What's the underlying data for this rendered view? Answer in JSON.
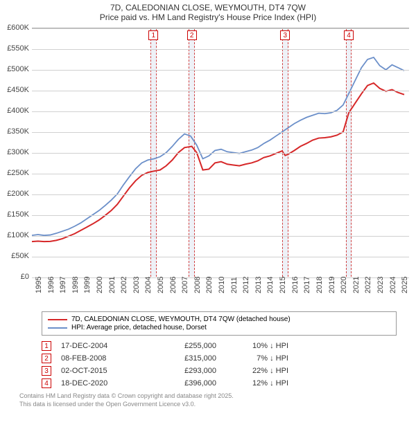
{
  "title": {
    "line1": "7D, CALEDONIAN CLOSE, WEYMOUTH, DT4 7QW",
    "line2": "Price paid vs. HM Land Registry's House Price Index (HPI)"
  },
  "chart": {
    "type": "line",
    "background_color": "#ffffff",
    "grid_color": "#d0d0d0",
    "xlim": [
      1995,
      2025.9
    ],
    "ylim": [
      0,
      600000
    ],
    "ytick_step": 50000,
    "y_ticks": [
      "£0",
      "£50K",
      "£100K",
      "£150K",
      "£200K",
      "£250K",
      "£300K",
      "£350K",
      "£400K",
      "£450K",
      "£500K",
      "£550K",
      "£600K"
    ],
    "x_ticks": [
      "1995",
      "1996",
      "1997",
      "1998",
      "1999",
      "2000",
      "2001",
      "2002",
      "2003",
      "2004",
      "2005",
      "2006",
      "2007",
      "2008",
      "2009",
      "2010",
      "2011",
      "2012",
      "2013",
      "2014",
      "2015",
      "2016",
      "2017",
      "2018",
      "2019",
      "2020",
      "2021",
      "2022",
      "2023",
      "2024",
      "2025"
    ],
    "x_tick_fontsize": 11,
    "y_tick_fontsize": 11,
    "series": [
      {
        "name": "red",
        "color": "#d62728",
        "width": 2,
        "points": [
          [
            1995.0,
            85000
          ],
          [
            1995.5,
            86000
          ],
          [
            1996.0,
            85000
          ],
          [
            1996.5,
            85500
          ],
          [
            1997.0,
            88000
          ],
          [
            1997.5,
            92000
          ],
          [
            1998.0,
            98000
          ],
          [
            1998.5,
            104000
          ],
          [
            1999.0,
            112000
          ],
          [
            1999.5,
            120000
          ],
          [
            2000.0,
            128000
          ],
          [
            2000.5,
            137000
          ],
          [
            2001.0,
            148000
          ],
          [
            2001.5,
            160000
          ],
          [
            2002.0,
            175000
          ],
          [
            2002.5,
            195000
          ],
          [
            2003.0,
            215000
          ],
          [
            2003.5,
            232000
          ],
          [
            2004.0,
            245000
          ],
          [
            2004.5,
            252000
          ],
          [
            2004.96,
            255000
          ],
          [
            2005.5,
            258000
          ],
          [
            2006.0,
            268000
          ],
          [
            2006.5,
            282000
          ],
          [
            2007.0,
            300000
          ],
          [
            2007.5,
            312000
          ],
          [
            2008.1,
            315000
          ],
          [
            2008.5,
            300000
          ],
          [
            2009.0,
            258000
          ],
          [
            2009.5,
            260000
          ],
          [
            2010.0,
            275000
          ],
          [
            2010.5,
            278000
          ],
          [
            2011.0,
            272000
          ],
          [
            2011.5,
            270000
          ],
          [
            2012.0,
            268000
          ],
          [
            2012.5,
            272000
          ],
          [
            2013.0,
            275000
          ],
          [
            2013.5,
            280000
          ],
          [
            2014.0,
            288000
          ],
          [
            2014.5,
            292000
          ],
          [
            2015.0,
            298000
          ],
          [
            2015.5,
            304000
          ],
          [
            2015.75,
            293000
          ],
          [
            2016.0,
            296000
          ],
          [
            2016.5,
            305000
          ],
          [
            2017.0,
            315000
          ],
          [
            2017.5,
            322000
          ],
          [
            2018.0,
            330000
          ],
          [
            2018.5,
            335000
          ],
          [
            2019.0,
            336000
          ],
          [
            2019.5,
            338000
          ],
          [
            2020.0,
            342000
          ],
          [
            2020.5,
            350000
          ],
          [
            2020.96,
            396000
          ],
          [
            2021.5,
            420000
          ],
          [
            2022.0,
            442000
          ],
          [
            2022.5,
            462000
          ],
          [
            2023.0,
            468000
          ],
          [
            2023.5,
            455000
          ],
          [
            2024.0,
            448000
          ],
          [
            2024.5,
            452000
          ],
          [
            2025.0,
            445000
          ],
          [
            2025.5,
            440000
          ]
        ]
      },
      {
        "name": "blue",
        "color": "#6b8fc9",
        "width": 1.8,
        "points": [
          [
            1995.0,
            100000
          ],
          [
            1995.5,
            102000
          ],
          [
            1996.0,
            100000
          ],
          [
            1996.5,
            101000
          ],
          [
            1997.0,
            105000
          ],
          [
            1997.5,
            110000
          ],
          [
            1998.0,
            115000
          ],
          [
            1998.5,
            122000
          ],
          [
            1999.0,
            130000
          ],
          [
            1999.5,
            140000
          ],
          [
            2000.0,
            150000
          ],
          [
            2000.5,
            160000
          ],
          [
            2001.0,
            172000
          ],
          [
            2001.5,
            185000
          ],
          [
            2002.0,
            200000
          ],
          [
            2002.5,
            222000
          ],
          [
            2003.0,
            242000
          ],
          [
            2003.5,
            261000
          ],
          [
            2004.0,
            275000
          ],
          [
            2004.5,
            282000
          ],
          [
            2005.0,
            285000
          ],
          [
            2005.5,
            290000
          ],
          [
            2006.0,
            300000
          ],
          [
            2006.5,
            315000
          ],
          [
            2007.0,
            332000
          ],
          [
            2007.5,
            345000
          ],
          [
            2008.0,
            340000
          ],
          [
            2008.5,
            318000
          ],
          [
            2009.0,
            285000
          ],
          [
            2009.5,
            292000
          ],
          [
            2010.0,
            305000
          ],
          [
            2010.5,
            308000
          ],
          [
            2011.0,
            302000
          ],
          [
            2011.5,
            300000
          ],
          [
            2012.0,
            298000
          ],
          [
            2012.5,
            302000
          ],
          [
            2013.0,
            306000
          ],
          [
            2013.5,
            312000
          ],
          [
            2014.0,
            322000
          ],
          [
            2014.5,
            330000
          ],
          [
            2015.0,
            340000
          ],
          [
            2015.5,
            350000
          ],
          [
            2016.0,
            360000
          ],
          [
            2016.5,
            370000
          ],
          [
            2017.0,
            378000
          ],
          [
            2017.5,
            385000
          ],
          [
            2018.0,
            390000
          ],
          [
            2018.5,
            395000
          ],
          [
            2019.0,
            394000
          ],
          [
            2019.5,
            396000
          ],
          [
            2020.0,
            402000
          ],
          [
            2020.5,
            415000
          ],
          [
            2021.0,
            445000
          ],
          [
            2021.5,
            475000
          ],
          [
            2022.0,
            505000
          ],
          [
            2022.5,
            525000
          ],
          [
            2023.0,
            530000
          ],
          [
            2023.5,
            510000
          ],
          [
            2024.0,
            500000
          ],
          [
            2024.5,
            512000
          ],
          [
            2025.0,
            505000
          ],
          [
            2025.5,
            498000
          ]
        ]
      }
    ],
    "markers": [
      {
        "id": "1",
        "x": 2004.96,
        "band_color": "#eef1f7"
      },
      {
        "id": "2",
        "x": 2008.1,
        "band_color": "#eef1f7"
      },
      {
        "id": "3",
        "x": 2015.75,
        "band_color": "#eef1f7"
      },
      {
        "id": "4",
        "x": 2020.96,
        "band_color": "#eef1f7"
      }
    ],
    "marker_band_halfwidth_years": 0.25
  },
  "legend": {
    "border_color": "#999999",
    "items": [
      {
        "color": "#d62728",
        "label": "7D, CALEDONIAN CLOSE, WEYMOUTH, DT4 7QW (detached house)"
      },
      {
        "color": "#6b8fc9",
        "label": "HPI: Average price, detached house, Dorset"
      }
    ]
  },
  "sales": [
    {
      "id": "1",
      "date": "17-DEC-2004",
      "price": "£255,000",
      "delta": "10% ↓ HPI"
    },
    {
      "id": "2",
      "date": "08-FEB-2008",
      "price": "£315,000",
      "delta": "7% ↓ HPI"
    },
    {
      "id": "3",
      "date": "02-OCT-2015",
      "price": "£293,000",
      "delta": "22% ↓ HPI"
    },
    {
      "id": "4",
      "date": "18-DEC-2020",
      "price": "£396,000",
      "delta": "12% ↓ HPI"
    }
  ],
  "attribution": {
    "line1": "Contains HM Land Registry data © Crown copyright and database right 2025.",
    "line2": "This data is licensed under the Open Government Licence v3.0."
  }
}
